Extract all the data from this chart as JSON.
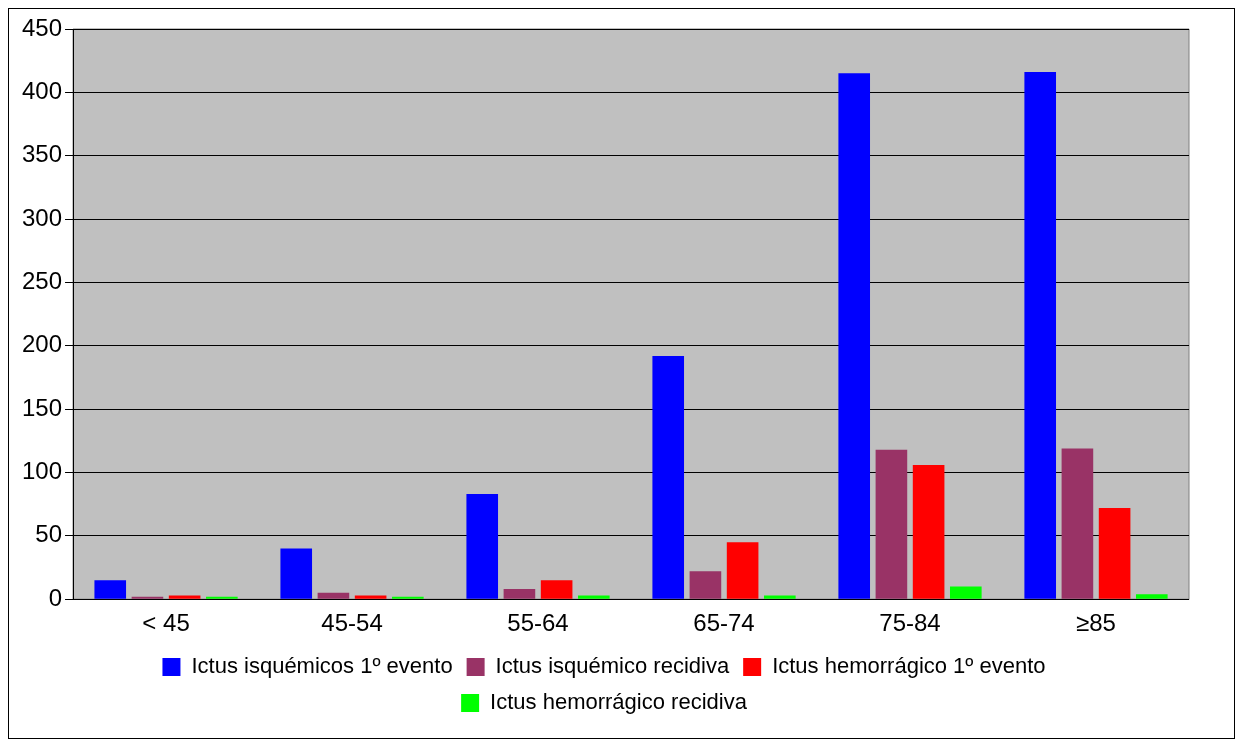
{
  "chart_data": {
    "type": "bar",
    "categories": [
      "< 45",
      "45-54",
      "55-64",
      "65-74",
      "75-84",
      "≥85"
    ],
    "series": [
      {
        "name": "Ictus isquémicos 1º evento",
        "color": "#0000ff",
        "values": [
          15,
          40,
          83,
          192,
          415,
          416
        ]
      },
      {
        "name": "Ictus isquémico recidiva",
        "color": "#993366",
        "values": [
          2,
          5,
          8,
          22,
          118,
          119
        ]
      },
      {
        "name": "Ictus hemorrágico 1º evento",
        "color": "#ff0000",
        "values": [
          3,
          3,
          15,
          45,
          106,
          72
        ]
      },
      {
        "name": "Ictus hemorrágico recidiva",
        "color": "#00ff00",
        "values": [
          2,
          2,
          3,
          3,
          10,
          4
        ]
      }
    ],
    "ylim": [
      0,
      450
    ],
    "yticks": [
      0,
      50,
      100,
      150,
      200,
      250,
      300,
      350,
      400,
      450
    ],
    "grid": "y",
    "legend": "bottom"
  }
}
